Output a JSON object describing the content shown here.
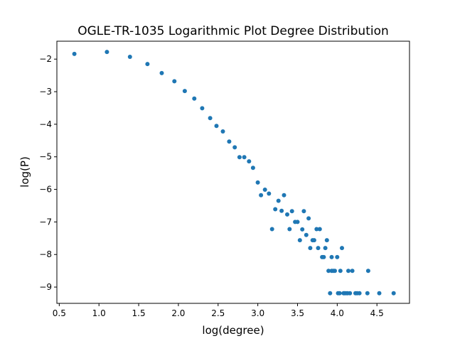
{
  "chart_data": {
    "type": "scatter",
    "title": "OGLE-TR-1035 Logarithmic Plot Degree Distribution",
    "xlabel": "log(degree)",
    "ylabel": "log(P)",
    "xlim": [
      0.47,
      4.91
    ],
    "ylim": [
      -9.5,
      -1.45
    ],
    "xticks": [
      0.5,
      1.0,
      1.5,
      2.0,
      2.5,
      3.0,
      3.5,
      4.0,
      4.5
    ],
    "xtick_labels": [
      "0.5",
      "1.0",
      "1.5",
      "2.0",
      "2.5",
      "3.0",
      "3.5",
      "4.0",
      "4.5"
    ],
    "yticks": [
      -2,
      -3,
      -4,
      -5,
      -6,
      -7,
      -8,
      -9
    ],
    "ytick_labels": [
      "−2",
      "−3",
      "−4",
      "−5",
      "−6",
      "−7",
      "−8",
      "−9"
    ],
    "grid": false,
    "marker_color": "#1f77b4",
    "points": [
      [
        0.69,
        -1.84
      ],
      [
        1.1,
        -1.78
      ],
      [
        1.39,
        -1.93
      ],
      [
        1.61,
        -2.15
      ],
      [
        1.79,
        -2.43
      ],
      [
        1.95,
        -2.68
      ],
      [
        2.08,
        -2.98
      ],
      [
        2.2,
        -3.21
      ],
      [
        2.3,
        -3.51
      ],
      [
        2.4,
        -3.81
      ],
      [
        2.48,
        -4.05
      ],
      [
        2.56,
        -4.22
      ],
      [
        2.64,
        -4.53
      ],
      [
        2.71,
        -4.71
      ],
      [
        2.77,
        -5.01
      ],
      [
        2.83,
        -5.01
      ],
      [
        2.89,
        -5.14
      ],
      [
        2.94,
        -5.34
      ],
      [
        3.0,
        -5.79
      ],
      [
        3.04,
        -6.18
      ],
      [
        3.09,
        -6.01
      ],
      [
        3.14,
        -6.13
      ],
      [
        3.18,
        -7.22
      ],
      [
        3.22,
        -6.61
      ],
      [
        3.26,
        -6.35
      ],
      [
        3.3,
        -6.66
      ],
      [
        3.33,
        -6.18
      ],
      [
        3.37,
        -6.77
      ],
      [
        3.4,
        -7.22
      ],
      [
        3.43,
        -6.67
      ],
      [
        3.47,
        -7.0
      ],
      [
        3.5,
        -7.0
      ],
      [
        3.53,
        -7.56
      ],
      [
        3.56,
        -7.23
      ],
      [
        3.58,
        -6.67
      ],
      [
        3.61,
        -7.4
      ],
      [
        3.64,
        -6.89
      ],
      [
        3.66,
        -7.8
      ],
      [
        3.69,
        -7.56
      ],
      [
        3.71,
        -7.56
      ],
      [
        3.74,
        -7.22
      ],
      [
        3.76,
        -7.8
      ],
      [
        3.78,
        -7.22
      ],
      [
        3.81,
        -8.08
      ],
      [
        3.83,
        -8.08
      ],
      [
        3.85,
        -7.8
      ],
      [
        3.87,
        -7.56
      ],
      [
        3.89,
        -8.5
      ],
      [
        3.91,
        -9.19
      ],
      [
        3.93,
        -8.08
      ],
      [
        3.93,
        -8.5
      ],
      [
        3.95,
        -8.5
      ],
      [
        3.97,
        -8.5
      ],
      [
        4.0,
        -8.08
      ],
      [
        4.01,
        -9.19
      ],
      [
        4.03,
        -9.19
      ],
      [
        4.04,
        -8.5
      ],
      [
        4.06,
        -7.8
      ],
      [
        4.08,
        -9.19
      ],
      [
        4.09,
        -9.19
      ],
      [
        4.11,
        -9.19
      ],
      [
        4.13,
        -9.19
      ],
      [
        4.14,
        -8.5
      ],
      [
        4.16,
        -9.19
      ],
      [
        4.19,
        -8.5
      ],
      [
        4.23,
        -9.19
      ],
      [
        4.25,
        -9.19
      ],
      [
        4.28,
        -9.19
      ],
      [
        4.38,
        -9.19
      ],
      [
        4.39,
        -8.5
      ],
      [
        4.53,
        -9.19
      ],
      [
        4.71,
        -9.19
      ]
    ]
  }
}
